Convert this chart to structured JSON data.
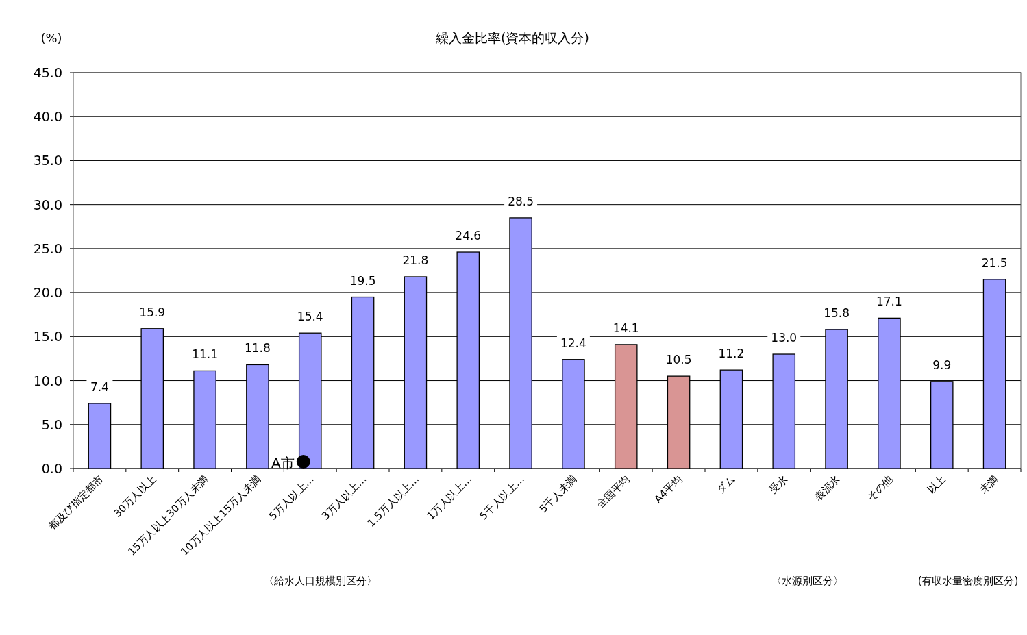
{
  "chart_data": {
    "type": "bar",
    "title": "繰入金比率(資本的収入分)",
    "ylabel": "(%)",
    "categories": [
      "都及び指定都市",
      "30万人以上",
      "15万人以上30万人未満",
      "10万人以上15万人未満",
      "5万人以上…",
      "3万人以上…",
      "1.5万人以上…",
      "1万人以上…",
      "5千人以上…",
      "5千人未満",
      "全国平均",
      "A4平均",
      "ダム",
      "受水",
      "表流水",
      "その他",
      "以上",
      "未満"
    ],
    "series": [
      {
        "colors": [
          "#9999ff",
          "#9999ff",
          "#9999ff",
          "#9999ff",
          "#9999ff",
          "#9999ff",
          "#9999ff",
          "#9999ff",
          "#9999ff",
          "#9999ff",
          "#d99594",
          "#d99594",
          "#9999ff",
          "#9999ff",
          "#9999ff",
          "#9999ff",
          "#9999ff",
          "#9999ff"
        ],
        "values": [
          7.4,
          15.9,
          11.1,
          11.8,
          15.4,
          19.5,
          21.8,
          24.6,
          28.5,
          12.4,
          14.1,
          10.5,
          11.2,
          13.0,
          15.8,
          17.1,
          9.9,
          21.5
        ],
        "value_labels": [
          "7.4",
          "15.9",
          "11.1",
          "11.8",
          "15.4",
          "19.5",
          "21.8",
          "24.6",
          "28.5",
          "12.4",
          "14.1",
          "10.5",
          "11.2",
          "13.0",
          "15.8",
          "17.1",
          "9.9",
          "21.5"
        ]
      },
      {
        "type": "scatter",
        "name": "A市",
        "color": "#000000",
        "marker": "circle",
        "x": [
          "5万人以上…"
        ],
        "values": [
          0.7
        ]
      }
    ],
    "ylim": [
      0,
      45
    ],
    "yticks": [
      {
        "value": 0,
        "label": "0.0"
      },
      {
        "value": 5,
        "label": "5.0"
      },
      {
        "value": 10,
        "label": "10.0"
      },
      {
        "value": 15,
        "label": "15.0"
      },
      {
        "value": 20,
        "label": "20.0"
      },
      {
        "value": 25,
        "label": "25.0"
      },
      {
        "value": 30,
        "label": "30.0"
      },
      {
        "value": 35,
        "label": "35.0"
      },
      {
        "value": 40,
        "label": "40.0"
      },
      {
        "value": 45,
        "label": "45.0"
      }
    ],
    "grid": "y",
    "legend": false,
    "annotations": [
      "〈給水人口規模別区分〉",
      "〈水源別区分〉",
      "(有収水量密度別区分)"
    ]
  }
}
